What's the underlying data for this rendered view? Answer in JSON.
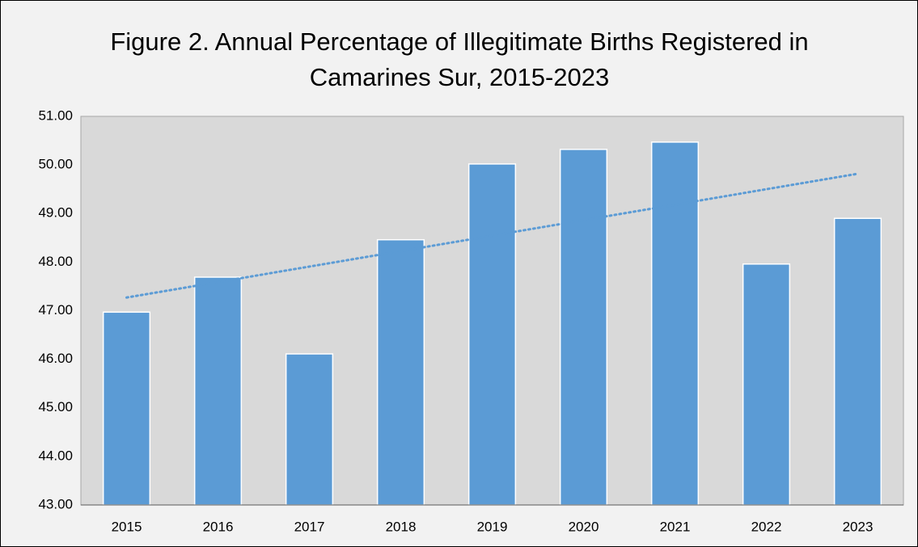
{
  "chart_data": {
    "type": "bar",
    "title": "Figure 2. Annual Percentage of Illegitimate Births Registered in Camarines Sur, 2015-2023",
    "categories": [
      "2015",
      "2016",
      "2017",
      "2018",
      "2019",
      "2020",
      "2021",
      "2022",
      "2023"
    ],
    "values": [
      46.97,
      47.69,
      46.11,
      48.46,
      50.02,
      50.32,
      50.47,
      47.96,
      48.9
    ],
    "color": "#5b9bd5",
    "ylim": [
      43,
      51
    ],
    "yticks": [
      {
        "value": 43,
        "label": "43.00"
      },
      {
        "value": 44,
        "label": "44.00"
      },
      {
        "value": 45,
        "label": "45.00"
      },
      {
        "value": 46,
        "label": "46.00"
      },
      {
        "value": 47,
        "label": "47.00"
      },
      {
        "value": 48,
        "label": "48.00"
      },
      {
        "value": 49,
        "label": "49.00"
      },
      {
        "value": 50,
        "label": "50.00"
      },
      {
        "value": 51,
        "label": "51.00"
      }
    ],
    "grid": false,
    "trendline": true,
    "trendline_color": "#5b9bd5"
  }
}
